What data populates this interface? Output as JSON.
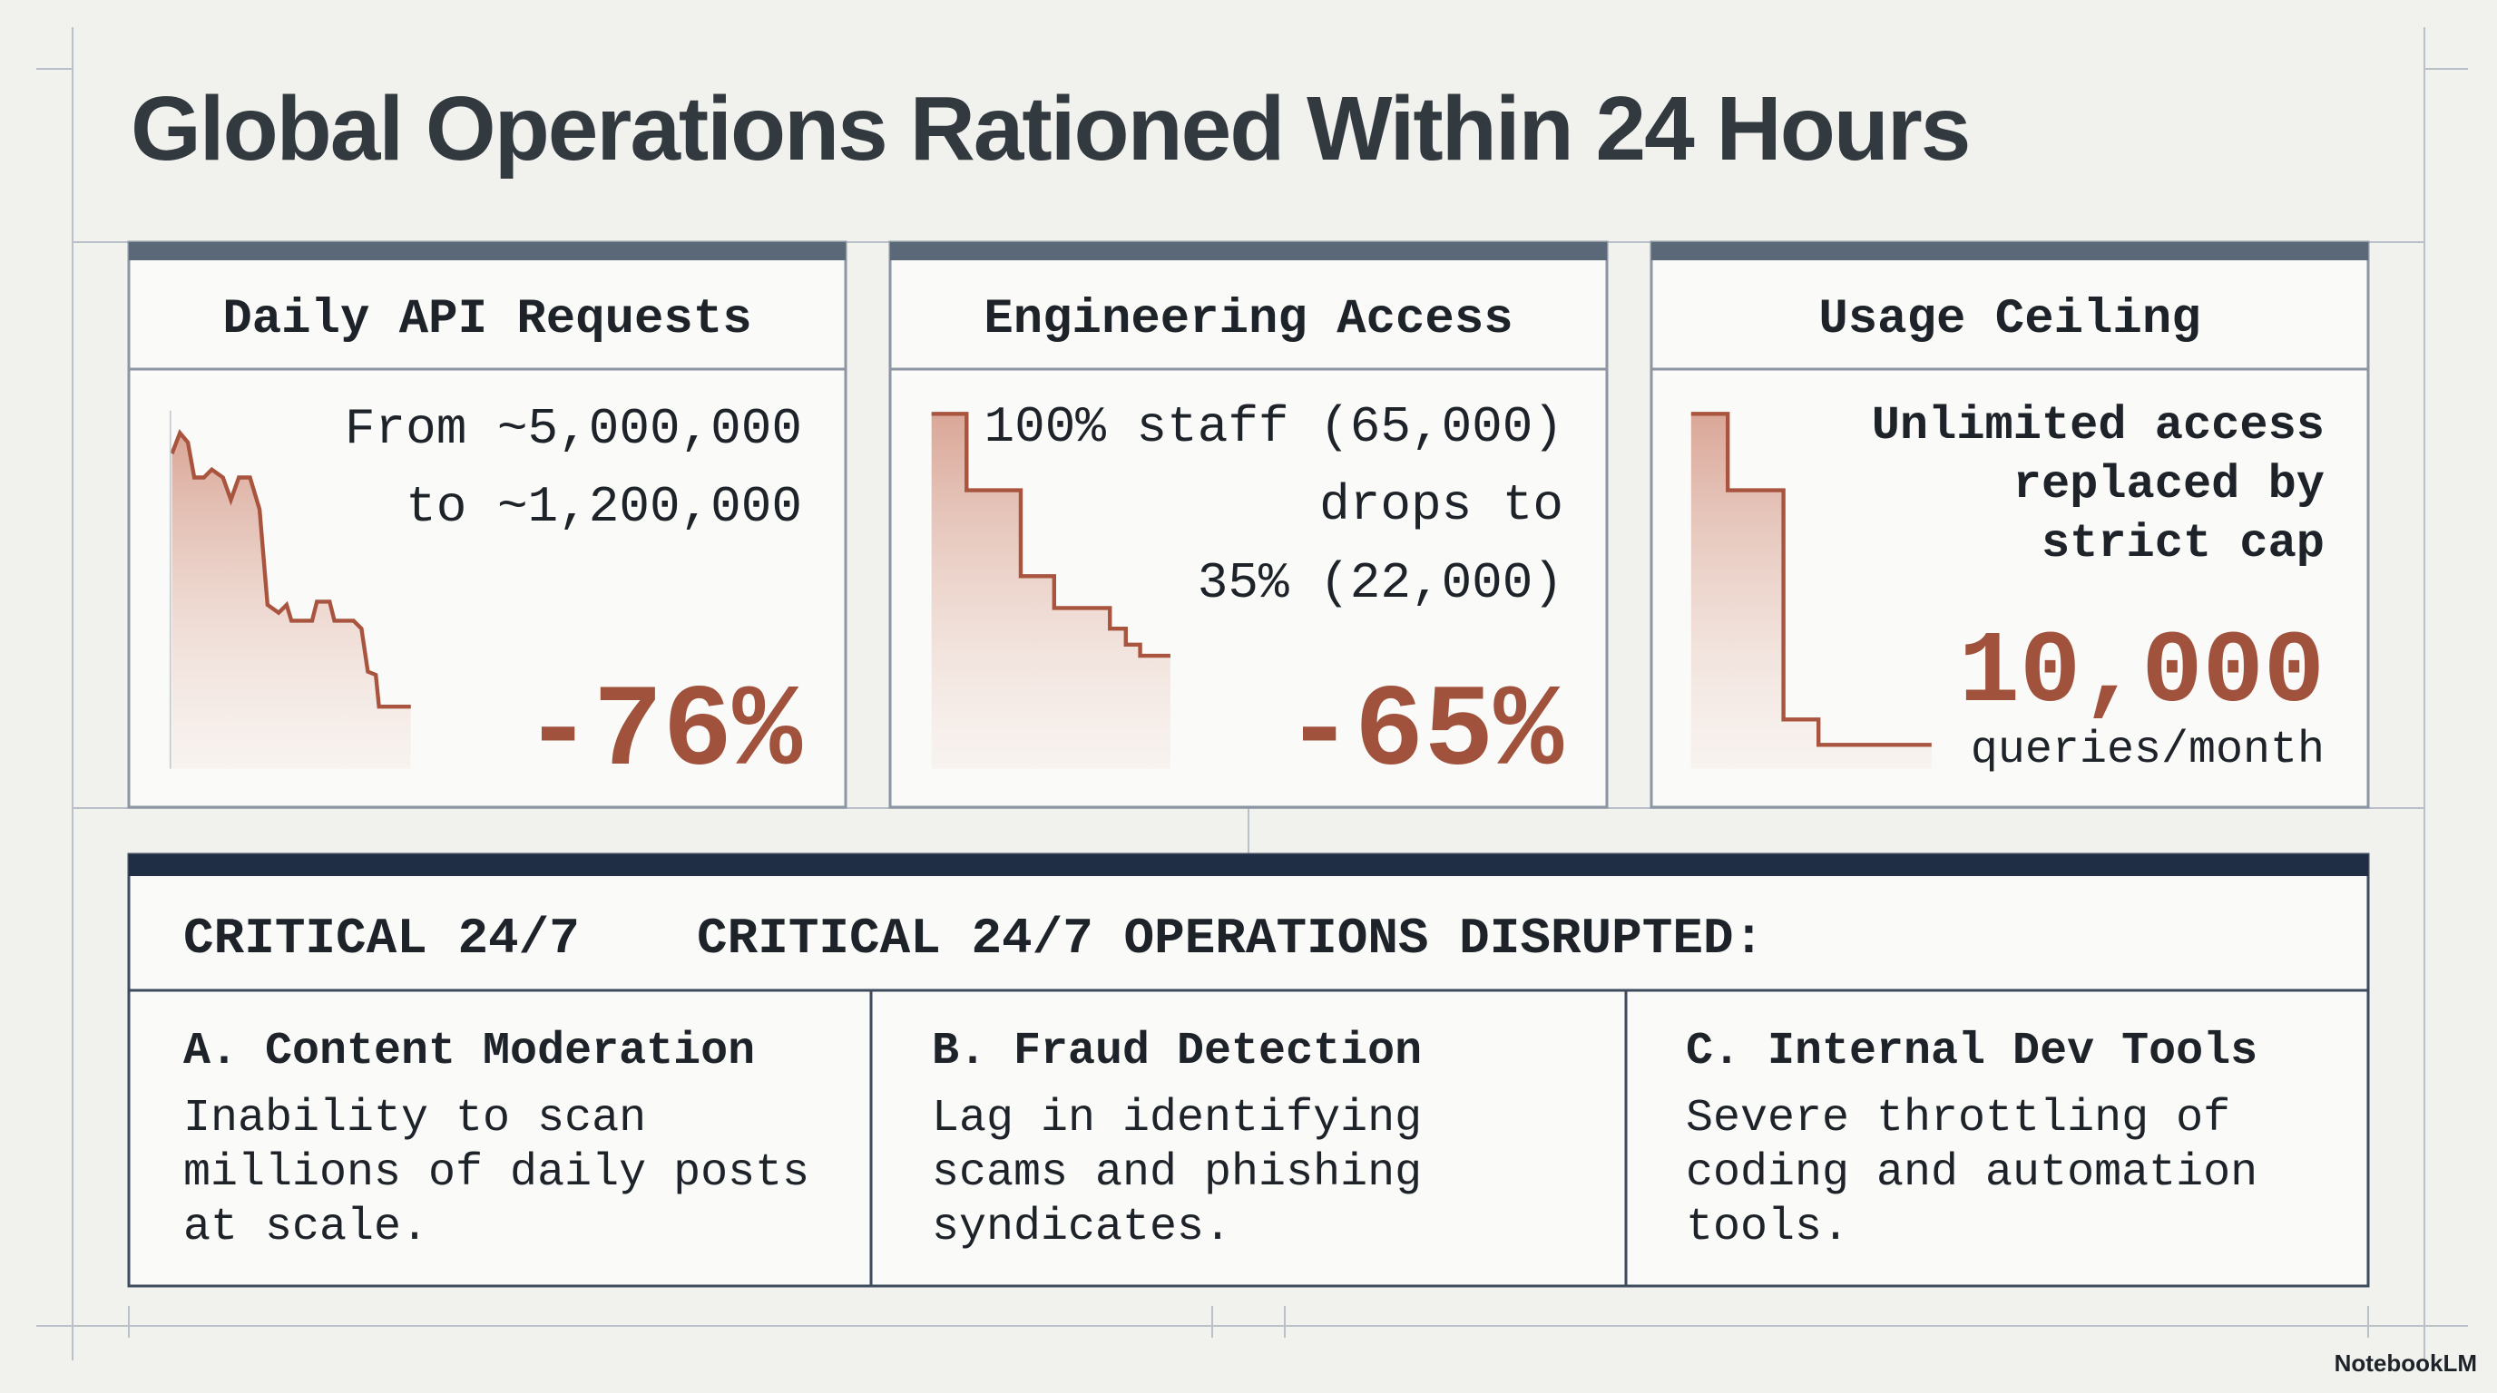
{
  "title": "Global Operations Rationed Within 24 Hours",
  "cards": [
    {
      "heading": "Daily API Requests",
      "lines": [
        "From ~5,000,000",
        "to ~1,200,000"
      ],
      "stat": "-76%"
    },
    {
      "heading": "Engineering Access",
      "lines": [
        "100% staff (65,000)",
        "drops to",
        "35% (22,000)"
      ],
      "stat": "-65%"
    },
    {
      "heading": "Usage Ceiling",
      "lines": [
        "Unlimited access",
        "replaced by",
        "strict cap"
      ],
      "stat": "10,000",
      "unit": "queries/month"
    }
  ],
  "banner": {
    "label": "CRITICAL 24/7",
    "heading": "CRITICAL 24/7 OPERATIONS DISRUPTED:"
  },
  "items": [
    {
      "title": "A. Content Moderation",
      "lines": [
        "Inability to scan",
        "millions of daily posts",
        "at scale."
      ]
    },
    {
      "title": "B. Fraud Detection",
      "lines": [
        "Lag in identifying",
        "scams and phishing",
        "syndicates."
      ]
    },
    {
      "title": "C. Internal Dev Tools",
      "lines": [
        "Severe throttling of",
        "coding and automation",
        "tools."
      ]
    }
  ],
  "footer": "NotebookLM"
}
